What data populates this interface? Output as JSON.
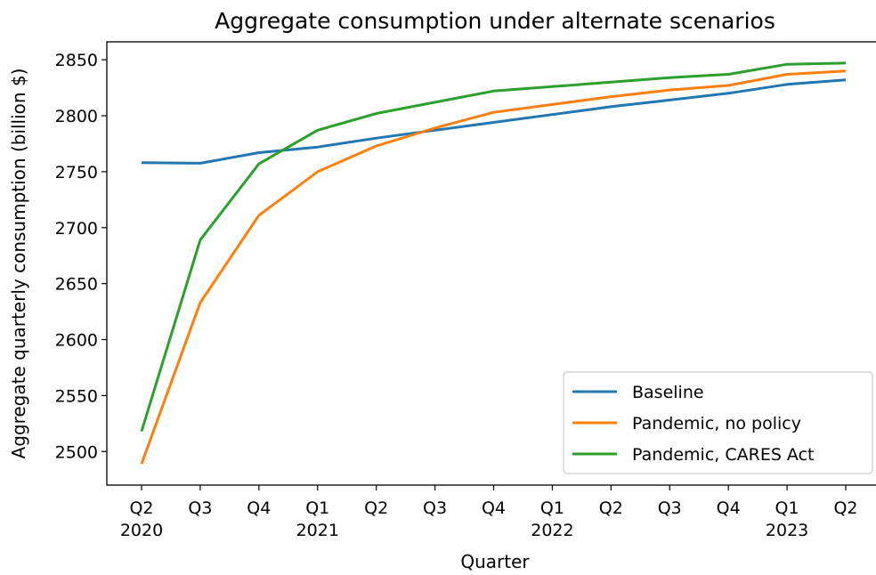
{
  "chart_data": {
    "type": "line",
    "title": "Aggregate consumption under alternate scenarios",
    "xlabel": "Quarter",
    "ylabel": "Aggregate quarterly consumption (billion $)",
    "x_ticks": [
      {
        "quarter": "Q2",
        "year": "2020"
      },
      {
        "quarter": "Q3",
        "year": ""
      },
      {
        "quarter": "Q4",
        "year": ""
      },
      {
        "quarter": "Q1",
        "year": "2021"
      },
      {
        "quarter": "Q2",
        "year": ""
      },
      {
        "quarter": "Q3",
        "year": ""
      },
      {
        "quarter": "Q4",
        "year": ""
      },
      {
        "quarter": "Q1",
        "year": "2022"
      },
      {
        "quarter": "Q2",
        "year": ""
      },
      {
        "quarter": "Q3",
        "year": ""
      },
      {
        "quarter": "Q4",
        "year": ""
      },
      {
        "quarter": "Q1",
        "year": "2023"
      },
      {
        "quarter": "Q2",
        "year": ""
      }
    ],
    "y_ticks": [
      2500,
      2550,
      2600,
      2650,
      2700,
      2750,
      2800,
      2850
    ],
    "ylim": [
      2470,
      2866
    ],
    "grid": false,
    "legend_position": "lower-right",
    "series": [
      {
        "name": "Baseline",
        "color": "#1f77b4",
        "values": [
          2758,
          2757.5,
          2767,
          2772,
          2780,
          2787,
          2794,
          2801,
          2808,
          2814,
          2820,
          2828,
          2832
        ]
      },
      {
        "name": "Pandemic, no policy",
        "color": "#ff7f0e",
        "values": [
          2489,
          2633,
          2711,
          2750,
          2773,
          2789,
          2803,
          2810,
          2817,
          2823,
          2827,
          2837,
          2840
        ]
      },
      {
        "name": "Pandemic, CARES Act",
        "color": "#2ca02c",
        "values": [
          2518,
          2689,
          2757,
          2787,
          2802,
          2812,
          2822,
          2826,
          2830,
          2834,
          2837,
          2846,
          2847
        ]
      }
    ]
  }
}
